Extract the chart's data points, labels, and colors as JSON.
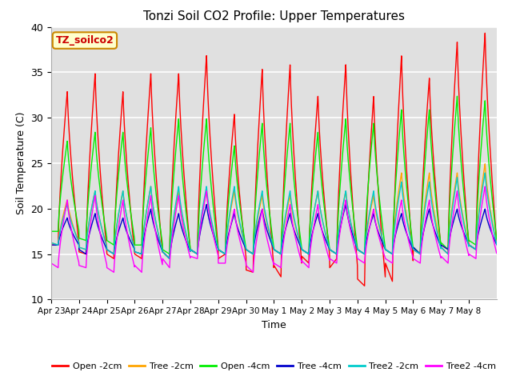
{
  "title": "Tonzi Soil CO2 Profile: Upper Temperatures",
  "xlabel": "Time",
  "ylabel": "Soil Temperature (C)",
  "ylim": [
    10,
    40
  ],
  "annotation": "TZ_soilco2",
  "background_color": "#e0e0e0",
  "series": [
    {
      "name": "Open -2cm",
      "color": "#ff0000"
    },
    {
      "name": "Tree -2cm",
      "color": "#ffa500"
    },
    {
      "name": "Open -4cm",
      "color": "#00ee00"
    },
    {
      "name": "Tree -4cm",
      "color": "#0000cc"
    },
    {
      "name": "Tree2 -2cm",
      "color": "#00cccc"
    },
    {
      "name": "Tree2 -4cm",
      "color": "#ff00ff"
    }
  ],
  "xtick_labels": [
    "Apr 23",
    "Apr 24",
    "Apr 25",
    "Apr 26",
    "Apr 27",
    "Apr 28",
    "Apr 29",
    "Apr 30",
    "May 1",
    "May 2",
    "May 3",
    "May 4",
    "May 5",
    "May 6",
    "May 7",
    "May 8"
  ],
  "ytick_labels": [
    10,
    15,
    20,
    25,
    30,
    35,
    40
  ],
  "n_days": 16,
  "cycles_data": {
    "open_2cm_peaks": [
      33,
      35,
      33,
      35,
      35,
      37,
      30.5,
      35.5,
      36,
      32.5,
      36,
      32.5,
      37,
      34.5,
      38.5,
      39.5
    ],
    "open_2cm_mins": [
      16,
      15,
      14.5,
      14.5,
      14.5,
      15,
      15,
      13,
      12.5,
      14,
      14.5,
      11.5,
      12,
      15,
      15,
      15.5
    ],
    "tree_2cm_peaks": [
      21,
      22,
      22,
      22.5,
      22,
      22,
      22,
      21.5,
      21.5,
      22,
      22,
      21.5,
      24,
      24,
      24,
      25
    ],
    "tree_2cm_mins": [
      16,
      15.5,
      15,
      15,
      14.5,
      15,
      15,
      15,
      15,
      15,
      15,
      15,
      15,
      15,
      15.5,
      15.5
    ],
    "open_4cm_peaks": [
      27.5,
      28.5,
      28.5,
      29,
      30,
      30,
      27,
      29.5,
      29.5,
      28.5,
      30,
      29.5,
      31,
      31,
      32.5,
      32
    ],
    "open_4cm_mins": [
      17.5,
      16.5,
      16,
      16,
      15,
      15,
      15,
      15,
      15,
      15,
      15,
      15,
      15,
      15,
      15.5,
      16
    ],
    "tree_4cm_peaks": [
      19,
      19.5,
      19,
      20,
      19.5,
      20.5,
      19.5,
      20,
      19.5,
      19.5,
      20.5,
      19.5,
      19.5,
      20,
      20,
      20
    ],
    "tree_4cm_mins": [
      16,
      15,
      15,
      15,
      14.5,
      15,
      15,
      15,
      15,
      15,
      15,
      15,
      15,
      15,
      15.5,
      15.5
    ],
    "tree2_2cm_peaks": [
      20.5,
      22,
      22,
      22.5,
      22.5,
      22.5,
      22.5,
      22,
      22,
      22,
      22,
      22,
      23,
      23,
      23.5,
      24
    ],
    "tree2_2cm_mins": [
      16,
      15.5,
      15,
      15,
      14.5,
      15,
      15,
      15,
      15,
      15,
      15,
      15,
      15,
      15,
      15,
      15.5
    ],
    "tree2_4cm_peaks": [
      21,
      21.5,
      21,
      21.5,
      21.5,
      22,
      20,
      20,
      20.5,
      20.5,
      21,
      20,
      21,
      21,
      22,
      22.5
    ],
    "tree2_4cm_mins": [
      13.5,
      13.5,
      13,
      13,
      13.5,
      14.5,
      14,
      13,
      13.5,
      13.5,
      14,
      14,
      14,
      14,
      14,
      14.5
    ]
  }
}
